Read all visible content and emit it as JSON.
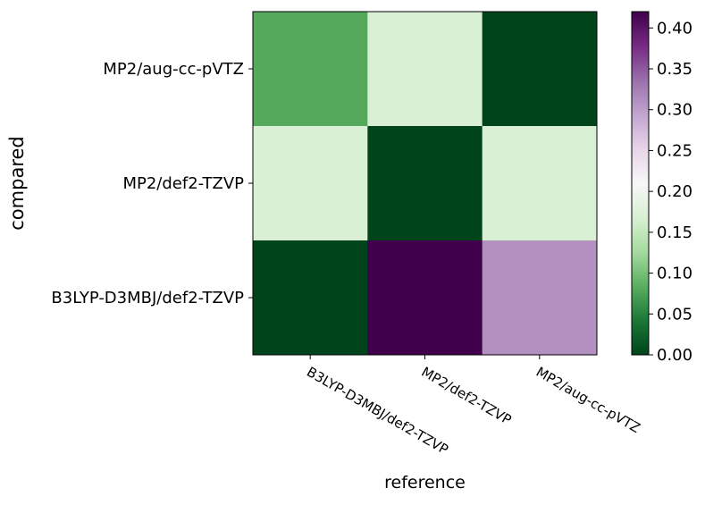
{
  "chart_data": {
    "type": "heatmap",
    "xlabel": "reference",
    "ylabel": "compared",
    "x_categories": [
      "B3LYP-D3MBJ/def2-TZVP",
      "MP2/def2-TZVP",
      "MP2/aug-cc-pVTZ"
    ],
    "y_categories": [
      "MP2/aug-cc-pVTZ",
      "MP2/def2-TZVP",
      "B3LYP-D3MBJ/def2-TZVP"
    ],
    "values": [
      [
        0.08,
        0.17,
        0.0
      ],
      [
        0.17,
        0.0,
        0.17
      ],
      [
        0.0,
        0.42,
        0.31
      ]
    ],
    "colormap": "PRGn_r",
    "colorbar": {
      "range": [
        0.0,
        0.42
      ],
      "ticks": [
        "0.00",
        "0.05",
        "0.10",
        "0.15",
        "0.20",
        "0.25",
        "0.30",
        "0.35",
        "0.40"
      ]
    }
  }
}
